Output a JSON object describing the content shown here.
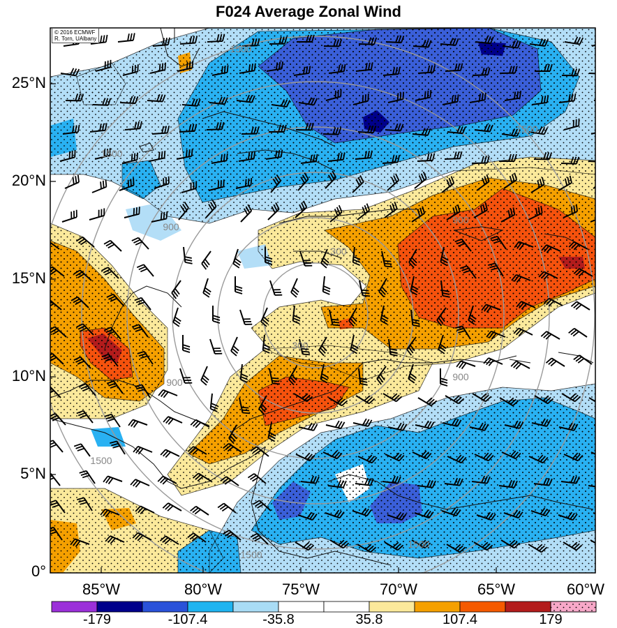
{
  "title": "F024 Average Zonal Wind",
  "credit": {
    "line1": "© 2016 ECMWF",
    "line2": "R. Torn, UAlbany"
  },
  "lat_labels": [
    "25°N",
    "20°N",
    "15°N",
    "10°N",
    "5°N",
    "0°"
  ],
  "lon_labels": [
    "85°W",
    "80°W",
    "75°W",
    "70°W",
    "65°W",
    "60°W"
  ],
  "range_ring_labels": [
    "300",
    "300",
    "900",
    "900",
    "900",
    "900",
    "1500",
    "1500",
    "1500",
    "1500",
    "1500",
    "1500"
  ],
  "colorbar": {
    "labels": [
      "-179",
      "-107.4",
      "-35.8",
      "35.8",
      "107.4",
      "179"
    ],
    "colors": [
      "#9b30d9",
      "#00008b",
      "#2a52d9",
      "#1fb4f0",
      "#a9dcf5",
      "#ffffff",
      "#ffffff",
      "#fbe99b",
      "#f5a000",
      "#f55a00",
      "#b31c1c",
      "#f7a8c8"
    ]
  },
  "fill_colors": {
    "strong_east": "#00008b",
    "east": "#3a5fd9",
    "mod_east": "#29b1f2",
    "weak_east": "#b3def7",
    "weak_west": "#fbe99b",
    "mod_west": "#f5a000",
    "west": "#f5520d",
    "strong_west": "#b31c1c"
  }
}
